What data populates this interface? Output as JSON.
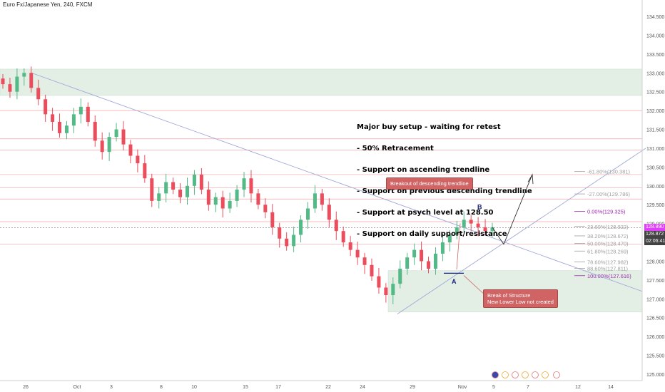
{
  "title": "Euro Fx/Japanese Yen, 240, FXCM",
  "note": {
    "lines": [
      "Major buy setup - waiting for retest",
      "- 50% Retracement",
      "- Support on ascending trendline",
      "- Support on previous descending trendline",
      "- Support at psych level at 128.50",
      "- Support on daily support/resistance"
    ]
  },
  "callouts": {
    "breakout": "Breakout of descending trendline",
    "structure_line1": "Break of Structure",
    "structure_line2": "New Lower Low not created"
  },
  "points": {
    "a": "A",
    "b": "B"
  },
  "price_tags": {
    "current": "128.890",
    "last": "128.872",
    "timer": "02:06:41"
  },
  "colors": {
    "up": "#53b987",
    "down": "#eb4d5c",
    "zone": "#e3efe5",
    "fib_purple": "#9c27b0",
    "trend": "#9fa8da",
    "hline": "#f2a5a5",
    "callout": "#d06464",
    "current": "#e040fb"
  },
  "chart_data": {
    "type": "candlestick",
    "symbol": "EURJPY",
    "timeframe": "240",
    "ylim": [
      124.8,
      134.7
    ],
    "y_ticks": [
      "134.500",
      "134.000",
      "133.500",
      "133.000",
      "132.500",
      "132.000",
      "131.500",
      "131.000",
      "130.500",
      "130.000",
      "129.500",
      "129.000",
      "128.500",
      "128.000",
      "127.500",
      "127.000",
      "126.500",
      "126.000",
      "125.500",
      "125.000"
    ],
    "x_ticks": [
      "26",
      "Oct",
      "3",
      "8",
      "10",
      "15",
      "17",
      "22",
      "24",
      "29",
      "Nov",
      "5",
      "7",
      "12",
      "14"
    ],
    "candles_close": [
      132.7,
      132.5,
      132.9,
      133.0,
      132.6,
      132.3,
      131.9,
      131.7,
      131.4,
      131.6,
      131.9,
      132.1,
      131.7,
      131.2,
      130.9,
      131.3,
      131.5,
      131.1,
      130.8,
      130.6,
      130.2,
      129.6,
      129.8,
      130.1,
      129.9,
      129.7,
      130.0,
      130.3,
      129.9,
      129.5,
      129.7,
      129.4,
      129.6,
      129.9,
      130.2,
      129.8,
      129.5,
      129.3,
      128.9,
      128.6,
      128.4,
      128.7,
      129.1,
      129.4,
      129.8,
      129.5,
      129.1,
      128.8,
      128.5,
      128.3,
      128.1,
      127.9,
      127.6,
      127.3,
      127.1,
      127.4,
      127.8,
      128.1,
      128.3,
      128.0,
      127.8,
      128.2,
      128.5,
      128.7,
      128.9,
      129.1,
      129.0,
      128.9,
      128.8,
      128.9
    ],
    "fib_levels": [
      {
        "label": "-61.80%(130.381)",
        "value": 130.381
      },
      {
        "label": "-27.00%(129.786)",
        "value": 129.786
      },
      {
        "label": "0.00%(129.325)",
        "value": 129.325
      },
      {
        "label": "23.60%(128.922)",
        "value": 128.922
      },
      {
        "label": "38.20%(128.672)",
        "value": 128.672
      },
      {
        "label": "50.00%(128.470)",
        "value": 128.47
      },
      {
        "label": "61.80%(128.269)",
        "value": 128.269
      },
      {
        "label": "78.60%(127.982)",
        "value": 127.982
      },
      {
        "label": "88.60%(127.811)",
        "value": 127.811
      },
      {
        "label": "100.00%(127.616)",
        "value": 127.616
      }
    ],
    "horizontal_levels": [
      132.0,
      131.25,
      130.95,
      130.3,
      129.95,
      129.65,
      129.05,
      128.45
    ],
    "zones": [
      {
        "from": 132.4,
        "to": 133.1
      },
      {
        "from": 126.65,
        "to": 127.75
      }
    ]
  }
}
